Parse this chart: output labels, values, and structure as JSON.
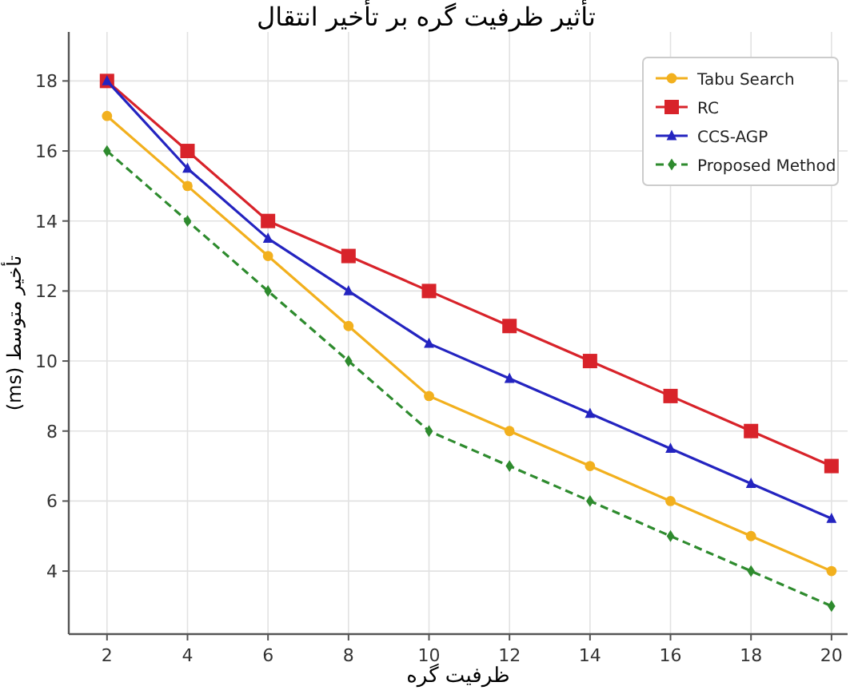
{
  "chart_data": {
    "type": "line",
    "title": "تأثیر ظرفیت گره بر تأخیر انتقال",
    "xlabel": "ظرفیت گره",
    "ylabel": "تأخیر متوسط (ms)",
    "x": [
      2,
      4,
      6,
      8,
      10,
      12,
      14,
      16,
      18,
      20
    ],
    "series": [
      {
        "name": "Tabu Search",
        "color": "#f2b01e",
        "marker": "circle",
        "line_style": "solid",
        "values": [
          17,
          15,
          13,
          11,
          9,
          8,
          7,
          6,
          5,
          4
        ]
      },
      {
        "name": "RC",
        "color": "#d8232a",
        "marker": "square",
        "line_style": "solid",
        "values": [
          18,
          16,
          14,
          13,
          12,
          11,
          10,
          9,
          8,
          7
        ]
      },
      {
        "name": "CCS-AGP",
        "color": "#2424c0",
        "marker": "triangle",
        "line_style": "solid",
        "values": [
          18,
          15.5,
          13.5,
          12,
          10.5,
          9.5,
          8.5,
          7.5,
          6.5,
          5.5
        ]
      },
      {
        "name": "Proposed Method",
        "color": "#2e8b2e",
        "marker": "diamond",
        "line_style": "dashed",
        "values": [
          16,
          14,
          12,
          10,
          8,
          7,
          6,
          5,
          4,
          3
        ]
      }
    ],
    "xlim": [
      1.05,
      20.4
    ],
    "ylim": [
      2.2,
      19.4
    ],
    "xticks": [
      2,
      4,
      6,
      8,
      10,
      12,
      14,
      16,
      18,
      20
    ],
    "yticks": [
      4,
      6,
      8,
      10,
      12,
      14,
      16,
      18
    ],
    "grid": true,
    "legend": "top right"
  }
}
